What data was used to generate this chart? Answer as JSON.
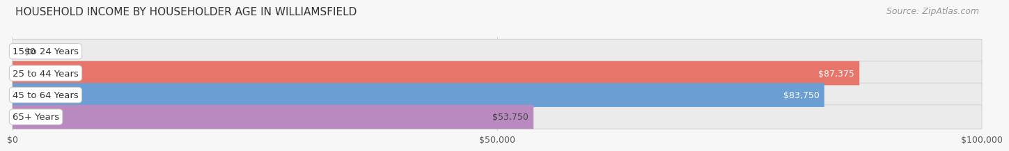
{
  "title": "HOUSEHOLD INCOME BY HOUSEHOLDER AGE IN WILLIAMSFIELD",
  "source": "Source: ZipAtlas.com",
  "categories": [
    "15 to 24 Years",
    "25 to 44 Years",
    "45 to 64 Years",
    "65+ Years"
  ],
  "values": [
    0,
    87375,
    83750,
    53750
  ],
  "bar_colors": [
    "#f5c8a0",
    "#e8756a",
    "#6b9fd4",
    "#b88abf"
  ],
  "bar_bg_color": "#ebebeb",
  "bar_border_color": "#d5d5d5",
  "label_bg_color": "#ffffff",
  "label_colors": [
    "#333333",
    "#ffffff",
    "#ffffff",
    "#444444"
  ],
  "value_labels": [
    "$0",
    "$87,375",
    "$83,750",
    "$53,750"
  ],
  "xlim": [
    0,
    100000
  ],
  "xticks": [
    0,
    50000,
    100000
  ],
  "xtick_labels": [
    "$0",
    "$50,000",
    "$100,000"
  ],
  "title_fontsize": 11,
  "source_fontsize": 9,
  "bar_label_fontsize": 9.5,
  "value_label_fontsize": 9,
  "background_color": "#f7f7f7",
  "grid_color": "#d0d0d0"
}
